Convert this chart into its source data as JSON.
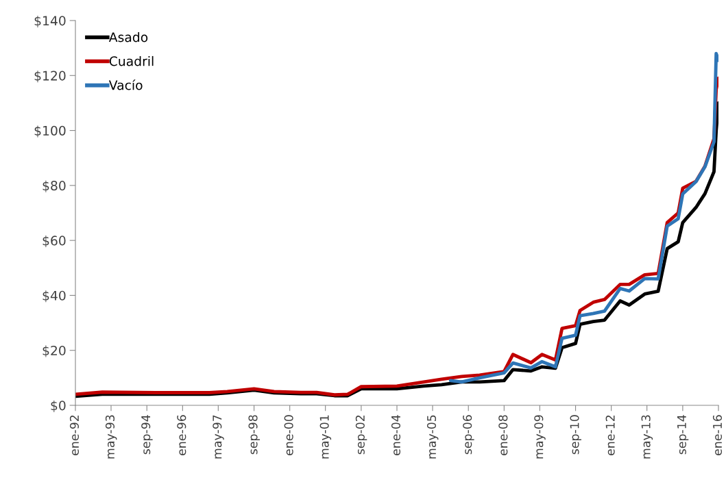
{
  "chart_data": {
    "type": "line",
    "x": [
      "1992-01",
      "1993-01",
      "1995-01",
      "1997-01",
      "1997-09",
      "1998-09",
      "1999-06",
      "2000-06",
      "2001-01",
      "2001-09",
      "2002-03",
      "2002-09",
      "2004-01",
      "2005-01",
      "2005-09",
      "2006-06",
      "2007-02",
      "2008-01",
      "2008-05",
      "2009-01",
      "2009-06",
      "2009-12",
      "2010-03",
      "2010-09",
      "2010-11",
      "2011-05",
      "2011-10",
      "2012-05",
      "2012-09",
      "2013-04",
      "2013-10",
      "2014-02",
      "2014-07",
      "2014-09",
      "2015-03",
      "2015-07",
      "2015-11",
      "2015-12",
      "2016-01"
    ],
    "series": [
      {
        "name": "Asado",
        "color": "#000000",
        "values": [
          3.3,
          4.0,
          4.0,
          4.0,
          4.5,
          5.5,
          4.5,
          4.2,
          4.2,
          3.5,
          3.5,
          6.0,
          6.0,
          7.0,
          7.5,
          8.5,
          8.5,
          9.0,
          13,
          12.5,
          14,
          13.5,
          21,
          22.5,
          29.5,
          30.5,
          31,
          38,
          36.5,
          40.5,
          41.5,
          57,
          59.5,
          66.5,
          72,
          77,
          85,
          100,
          110
        ]
      },
      {
        "name": "Cuadril",
        "color": "#c00000",
        "values": [
          4.0,
          4.8,
          4.6,
          4.6,
          5.0,
          6.0,
          5.0,
          4.7,
          4.7,
          3.8,
          4.0,
          6.8,
          7.0,
          8.5,
          9.5,
          10.5,
          11,
          12.3,
          18.5,
          15.5,
          18.5,
          16.5,
          28,
          29,
          34.5,
          37.5,
          38.5,
          44,
          44,
          47.5,
          48,
          66.5,
          70,
          79,
          81.5,
          87,
          97,
          115,
          119
        ]
      },
      {
        "name": "Vacío",
        "color": "#2e75b6",
        "x": [
          "2006-01",
          "2006-06",
          "2007-02",
          "2008-01",
          "2008-05",
          "2009-01",
          "2009-06",
          "2009-12",
          "2010-03",
          "2010-09",
          "2010-11",
          "2011-05",
          "2011-10",
          "2012-05",
          "2012-09",
          "2013-04",
          "2013-10",
          "2014-02",
          "2014-07",
          "2014-09",
          "2015-03",
          "2015-07",
          "2015-11",
          "2015-12",
          "2016-01"
        ],
        "values": [
          9,
          8.5,
          10,
          11.8,
          15.4,
          13.6,
          15.9,
          14,
          24.4,
          25.5,
          32.6,
          33.4,
          34.3,
          42.5,
          41.6,
          46.1,
          46,
          65.2,
          67.9,
          76.9,
          81.4,
          86.8,
          95.9,
          128,
          125.5
        ]
      }
    ],
    "xlim": [
      "1992-01",
      "2016-01"
    ],
    "xticks": [
      {
        "value": "1992-01",
        "label": "ene-92"
      },
      {
        "value": "1993-05",
        "label": "may-93"
      },
      {
        "value": "1994-09",
        "label": "sep-94"
      },
      {
        "value": "1996-01",
        "label": "ene-96"
      },
      {
        "value": "1997-05",
        "label": "may-97"
      },
      {
        "value": "1998-09",
        "label": "sep-98"
      },
      {
        "value": "2000-01",
        "label": "ene-00"
      },
      {
        "value": "2001-05",
        "label": "may-01"
      },
      {
        "value": "2002-09",
        "label": "sep-02"
      },
      {
        "value": "2004-01",
        "label": "ene-04"
      },
      {
        "value": "2005-05",
        "label": "may-05"
      },
      {
        "value": "2006-09",
        "label": "sep-06"
      },
      {
        "value": "2008-01",
        "label": "ene-08"
      },
      {
        "value": "2009-05",
        "label": "may-09"
      },
      {
        "value": "2010-09",
        "label": "sep-10"
      },
      {
        "value": "2012-01",
        "label": "ene-12"
      },
      {
        "value": "2013-05",
        "label": "may-13"
      },
      {
        "value": "2014-09",
        "label": "sep-14"
      },
      {
        "value": "2016-01",
        "label": "ene-16"
      }
    ],
    "ylim": [
      0,
      140
    ],
    "yticks": [
      {
        "value": 0,
        "label": "$0"
      },
      {
        "value": 20,
        "label": "$20"
      },
      {
        "value": 40,
        "label": "$40"
      },
      {
        "value": 60,
        "label": "$60"
      },
      {
        "value": 80,
        "label": "$80"
      },
      {
        "value": 100,
        "label": "$100"
      },
      {
        "value": 120,
        "label": "$120"
      },
      {
        "value": 140,
        "label": "$140"
      }
    ],
    "grid": false,
    "legend": "top left"
  }
}
